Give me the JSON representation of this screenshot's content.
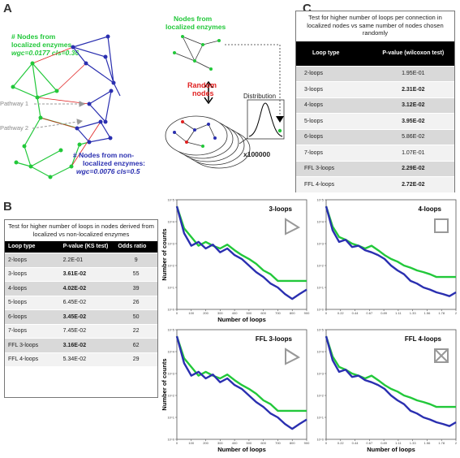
{
  "panelA": {
    "letter": "A",
    "localized_title_1": "# Nodes  from",
    "localized_title_2": "localized enzymes,",
    "localized_stats": "wgc=0.0177 cls=0.36",
    "pathway1": "Pathway 1",
    "pathway2": "Pathway 2",
    "nonlocalized_1": "# Nodes  from non-",
    "nonlocalized_2": "localized enzymes:",
    "nonlocalized_stats": "wgc=0.0076 cls=0.5",
    "nodes_from_localized_1": "Nodes  from",
    "nodes_from_localized_2": "localized enzymes",
    "random_1": "Random",
    "random_2": "nodes",
    "distribution": "Distribution",
    "multiplier": "x100000",
    "colors": {
      "green": "#22c83a",
      "blue": "#2a2fb0",
      "red": "#e02020"
    }
  },
  "panelB": {
    "letter": "B",
    "title": "Test for higher number of loops in nodes derived from localized vs non-localized enzymes",
    "headers": [
      "Loop type",
      "P-value (KS test)",
      "Odds ratio"
    ],
    "rows": [
      {
        "type": "2-loops",
        "p": "2.2E-01",
        "odds": "9",
        "bold": false
      },
      {
        "type": "3-loops",
        "p": "3.61E-02",
        "odds": "55",
        "bold": true
      },
      {
        "type": "4-loops",
        "p": "4.02E-02",
        "odds": "39",
        "bold": true
      },
      {
        "type": "5-loops",
        "p": "6.45E-02",
        "odds": "26",
        "bold": false
      },
      {
        "type": "6-loops",
        "p": "3.45E-02",
        "odds": "50",
        "bold": true
      },
      {
        "type": "7-loops",
        "p": "7.45E-02",
        "odds": "22",
        "bold": false
      },
      {
        "type": "FFL 3-loops",
        "p": "3.16E-02",
        "odds": "62",
        "bold": true
      },
      {
        "type": "FFL 4-loops",
        "p": "5.34E-02",
        "odds": "29",
        "bold": false
      }
    ]
  },
  "panelC": {
    "letter": "C",
    "title": "Test for higher number of loops per connection in localized nodes vs same number of nodes chosen randomly",
    "headers": [
      "Loop type",
      "P-value (wilcoxon test)"
    ],
    "rows": [
      {
        "type": "2-loops",
        "p": "1.95E-01",
        "bold": false
      },
      {
        "type": "3-loops",
        "p": "2.31E-02",
        "bold": true
      },
      {
        "type": "4-loops",
        "p": "3.12E-02",
        "bold": true
      },
      {
        "type": "5-loops",
        "p": "3.95E-02",
        "bold": true
      },
      {
        "type": "6-loops",
        "p": "5.86E-02",
        "bold": false
      },
      {
        "type": "7-loops",
        "p": "1.07E-01",
        "bold": false
      },
      {
        "type": "FFL 3-loops",
        "p": "2.29E-02",
        "bold": true
      },
      {
        "type": "FFL 4-loops",
        "p": "2.72E-02",
        "bold": true
      }
    ]
  },
  "chart_data": [
    {
      "type": "line",
      "title": "3-loops",
      "xlabel": "Number of loops",
      "ylabel": "Number of counts",
      "ylog": true,
      "xlim": [
        0,
        900
      ],
      "ylim": [
        1,
        100000
      ],
      "x": [
        0,
        50,
        100,
        150,
        200,
        250,
        300,
        350,
        400,
        450,
        500,
        550,
        600,
        650,
        700,
        750,
        800,
        850,
        900
      ],
      "series": [
        {
          "color": "#22c83a",
          "values": [
            50000,
            5000,
            2000,
            800,
            1200,
            800,
            600,
            900,
            500,
            300,
            200,
            120,
            60,
            40,
            20,
            20,
            20,
            20,
            20
          ]
        },
        {
          "color": "#2a2fb0",
          "values": [
            50000,
            3000,
            800,
            1200,
            600,
            900,
            400,
            600,
            300,
            200,
            100,
            50,
            30,
            15,
            10,
            5,
            3,
            5,
            8
          ]
        }
      ]
    },
    {
      "type": "line",
      "title": "4-loops",
      "xlabel": "",
      "ylabel": "",
      "ylog": true,
      "xlim": [
        0,
        2
      ],
      "ylim": [
        1,
        100000
      ],
      "x": [
        0,
        0.1,
        0.2,
        0.3,
        0.4,
        0.5,
        0.6,
        0.7,
        0.8,
        0.9,
        1.0,
        1.1,
        1.2,
        1.3,
        1.4,
        1.5,
        1.6,
        1.7,
        1.8,
        1.9,
        2.0
      ],
      "series": [
        {
          "color": "#22c83a",
          "values": [
            50000,
            6000,
            2000,
            1500,
            1000,
            800,
            600,
            800,
            500,
            300,
            200,
            150,
            100,
            80,
            60,
            50,
            40,
            30,
            30,
            30,
            30
          ]
        },
        {
          "color": "#2a2fb0",
          "values": [
            50000,
            4000,
            1200,
            1500,
            700,
            800,
            500,
            400,
            300,
            200,
            100,
            60,
            40,
            20,
            15,
            10,
            8,
            6,
            5,
            4,
            6
          ]
        }
      ]
    },
    {
      "type": "line",
      "title": "FFL 3-loops",
      "xlabel": "Number of loops",
      "ylabel": "Number of counts",
      "ylog": true,
      "xlim": [
        0,
        900
      ],
      "ylim": [
        1,
        100000
      ],
      "x": [
        0,
        50,
        100,
        150,
        200,
        250,
        300,
        350,
        400,
        450,
        500,
        550,
        600,
        650,
        700,
        750,
        800,
        850,
        900
      ],
      "series": [
        {
          "color": "#22c83a",
          "values": [
            50000,
            5000,
            2000,
            800,
            1200,
            800,
            600,
            900,
            500,
            300,
            200,
            120,
            60,
            40,
            20,
            20,
            20,
            20,
            20
          ]
        },
        {
          "color": "#2a2fb0",
          "values": [
            50000,
            3000,
            800,
            1200,
            600,
            900,
            400,
            600,
            300,
            200,
            100,
            50,
            30,
            15,
            10,
            5,
            3,
            5,
            8
          ]
        }
      ]
    },
    {
      "type": "line",
      "title": "FFL 4-loops",
      "xlabel": "Number of loops",
      "ylabel": "",
      "ylog": true,
      "xlim": [
        0,
        2
      ],
      "ylim": [
        1,
        100000
      ],
      "x": [
        0,
        0.1,
        0.2,
        0.3,
        0.4,
        0.5,
        0.6,
        0.7,
        0.8,
        0.9,
        1.0,
        1.1,
        1.2,
        1.3,
        1.4,
        1.5,
        1.6,
        1.7,
        1.8,
        1.9,
        2.0
      ],
      "series": [
        {
          "color": "#22c83a",
          "values": [
            50000,
            6000,
            2000,
            1500,
            1000,
            800,
            600,
            800,
            500,
            300,
            200,
            150,
            100,
            80,
            60,
            50,
            40,
            30,
            30,
            30,
            30
          ]
        },
        {
          "color": "#2a2fb0",
          "values": [
            50000,
            4000,
            1200,
            1500,
            700,
            800,
            500,
            400,
            300,
            200,
            100,
            60,
            40,
            20,
            15,
            10,
            8,
            6,
            5,
            4,
            6
          ]
        }
      ]
    }
  ]
}
